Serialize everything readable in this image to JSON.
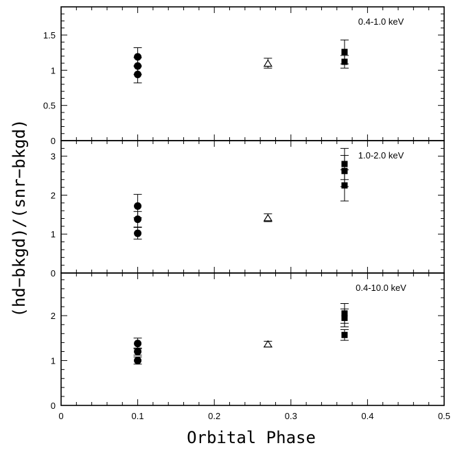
{
  "chart_data": {
    "type": "scatter",
    "xlabel": "Orbital Phase",
    "ylabel": "(hd−bkgd)/(snr−bkgd)",
    "xlim": [
      0,
      0.5
    ],
    "x_ticks": [
      "0",
      "0.1",
      "0.2",
      "0.3",
      "0.4",
      "0.5"
    ],
    "panels": [
      {
        "label": "0.4-1.0 keV",
        "ylim": [
          0,
          1.9
        ],
        "y_ticks": [
          "0",
          "0.5",
          "1",
          "1.5"
        ],
        "series": [
          {
            "marker": "circle",
            "points": [
              {
                "x": 0.1,
                "y": 1.19,
                "err": 0.13
              },
              {
                "x": 0.1,
                "y": 1.06,
                "err": 0.12
              },
              {
                "x": 0.1,
                "y": 0.94,
                "err": 0.12
              }
            ]
          },
          {
            "marker": "triangle-open",
            "points": [
              {
                "x": 0.27,
                "y": 1.1,
                "err": 0.07
              }
            ]
          },
          {
            "marker": "square",
            "points": [
              {
                "x": 0.37,
                "y": 1.26,
                "err": 0.17
              },
              {
                "x": 0.37,
                "y": 1.12,
                "err": 0.09
              }
            ]
          }
        ]
      },
      {
        "label": "1.0-2.0 keV",
        "ylim": [
          0,
          3.4
        ],
        "y_ticks": [
          "0",
          "1",
          "2",
          "3"
        ],
        "series": [
          {
            "marker": "circle",
            "points": [
              {
                "x": 0.1,
                "y": 1.72,
                "err": 0.3
              },
              {
                "x": 0.1,
                "y": 1.38,
                "err": 0.2
              },
              {
                "x": 0.1,
                "y": 1.02,
                "err": 0.15
              }
            ]
          },
          {
            "marker": "triangle-open",
            "points": [
              {
                "x": 0.27,
                "y": 1.42,
                "err": 0.1
              }
            ]
          },
          {
            "marker": "square",
            "points": [
              {
                "x": 0.37,
                "y": 2.8,
                "err": 0.4
              },
              {
                "x": 0.37,
                "y": 2.62,
                "err": 0.4
              },
              {
                "x": 0.37,
                "y": 2.25,
                "err": 0.4
              }
            ]
          }
        ]
      },
      {
        "label": "0.4-10.0 keV",
        "ylim": [
          0,
          2.95
        ],
        "y_ticks": [
          "0",
          "1",
          "2"
        ],
        "series": [
          {
            "marker": "circle",
            "points": [
              {
                "x": 0.1,
                "y": 1.38,
                "err": 0.12
              },
              {
                "x": 0.1,
                "y": 1.2,
                "err": 0.08
              },
              {
                "x": 0.1,
                "y": 1.0,
                "err": 0.08
              }
            ]
          },
          {
            "marker": "triangle-open",
            "points": [
              {
                "x": 0.27,
                "y": 1.37,
                "err": 0.06
              }
            ]
          },
          {
            "marker": "square",
            "points": [
              {
                "x": 0.37,
                "y": 2.05,
                "err": 0.22
              },
              {
                "x": 0.37,
                "y": 1.95,
                "err": 0.2
              },
              {
                "x": 0.37,
                "y": 1.57,
                "err": 0.12
              }
            ]
          }
        ]
      }
    ]
  }
}
